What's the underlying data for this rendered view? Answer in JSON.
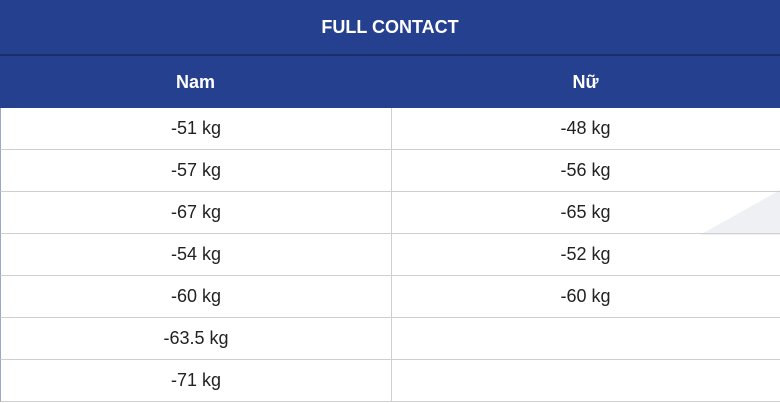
{
  "table": {
    "title": "FULL CONTACT",
    "headers": [
      "Nam",
      "Nữ"
    ],
    "rows": [
      [
        "-51 kg",
        "-48 kg"
      ],
      [
        "-57 kg",
        "-56 kg"
      ],
      [
        "-67 kg",
        "-65 kg"
      ],
      [
        "-54 kg",
        "-52 kg"
      ],
      [
        "-60 kg",
        "-60 kg"
      ],
      [
        "-63.5 kg"
      ],
      [
        "-71 kg"
      ]
    ]
  }
}
